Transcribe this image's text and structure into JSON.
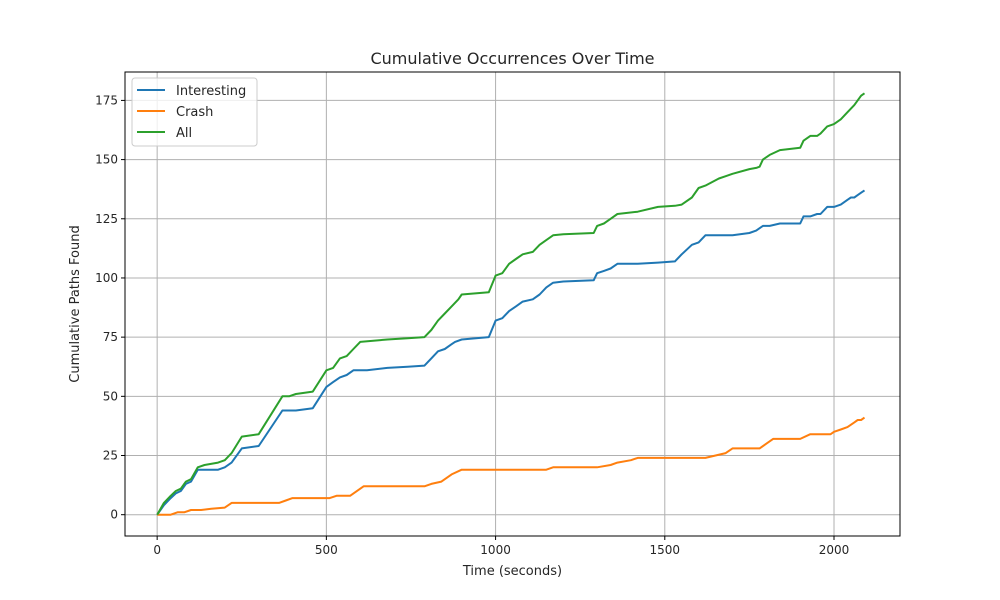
{
  "chart_data": {
    "type": "line",
    "title": "Cumulative Occurrences Over Time",
    "xlabel": "Time (seconds)",
    "ylabel": "Cumulative Paths Found",
    "xlim": [
      -95,
      2195
    ],
    "ylim": [
      -9,
      187
    ],
    "xticks": [
      0,
      500,
      1000,
      1500,
      2000
    ],
    "yticks": [
      0,
      25,
      50,
      75,
      100,
      125,
      150,
      175
    ],
    "grid": true,
    "legend_position": "top-left",
    "series": [
      {
        "name": "Interesting",
        "color": "#1f77b4",
        "x": [
          0,
          20,
          40,
          55,
          70,
          85,
          100,
          120,
          140,
          180,
          200,
          220,
          250,
          300,
          370,
          390,
          410,
          460,
          500,
          520,
          540,
          560,
          580,
          620,
          680,
          740,
          790,
          810,
          830,
          850,
          870,
          880,
          900,
          980,
          1000,
          1020,
          1040,
          1060,
          1080,
          1110,
          1130,
          1150,
          1170,
          1200,
          1290,
          1300,
          1320,
          1340,
          1360,
          1420,
          1480,
          1530,
          1550,
          1580,
          1600,
          1620,
          1660,
          1700,
          1750,
          1770,
          1780,
          1790,
          1810,
          1840,
          1900,
          1910,
          1930,
          1950,
          1960,
          1980,
          2000,
          2020,
          2040,
          2050,
          2060,
          2070,
          2080,
          2090
        ],
        "values": [
          0,
          4,
          7,
          9,
          10,
          13,
          14,
          19,
          19,
          19,
          20,
          22,
          28,
          29,
          44,
          44,
          44,
          45,
          54,
          56,
          58,
          59,
          61,
          61,
          62,
          62.5,
          63,
          66,
          69,
          70,
          72,
          73,
          74,
          75,
          82,
          83,
          86,
          88,
          90,
          91,
          93,
          96,
          98,
          98.5,
          99,
          102,
          103,
          104,
          106,
          106,
          106.5,
          107,
          110,
          114,
          115,
          118,
          118,
          118,
          119,
          120,
          121,
          122,
          122,
          123,
          123,
          126,
          126,
          127,
          127,
          130,
          130,
          131,
          133,
          134,
          134,
          135,
          136,
          137
        ]
      },
      {
        "name": "Crash",
        "color": "#ff7f0e",
        "x": [
          0,
          20,
          40,
          60,
          80,
          100,
          130,
          160,
          200,
          220,
          250,
          300,
          360,
          380,
          400,
          450,
          510,
          530,
          570,
          610,
          650,
          700,
          750,
          790,
          810,
          840,
          870,
          900,
          1000,
          1100,
          1150,
          1170,
          1300,
          1340,
          1360,
          1400,
          1420,
          1500,
          1560,
          1620,
          1680,
          1700,
          1780,
          1800,
          1820,
          1900,
          1930,
          1950,
          1990,
          2000,
          2020,
          2040,
          2060,
          2070,
          2080,
          2090
        ],
        "values": [
          0,
          0,
          0,
          1,
          1,
          2,
          2,
          2.5,
          3,
          5,
          5,
          5,
          5,
          6,
          7,
          7,
          7,
          8,
          8,
          12,
          12,
          12,
          12,
          12,
          13,
          14,
          17,
          19,
          19,
          19,
          19,
          20,
          20,
          21,
          22,
          23,
          24,
          24,
          24,
          24,
          26,
          28,
          28,
          30,
          32,
          32,
          34,
          34,
          34,
          35,
          36,
          37,
          39,
          40,
          40,
          41
        ]
      },
      {
        "name": "All",
        "color": "#2ca02c",
        "x": [
          0,
          20,
          40,
          55,
          70,
          85,
          100,
          120,
          140,
          180,
          200,
          220,
          250,
          300,
          370,
          390,
          410,
          460,
          500,
          520,
          540,
          560,
          580,
          600,
          680,
          740,
          790,
          810,
          830,
          850,
          870,
          890,
          900,
          980,
          1000,
          1020,
          1040,
          1060,
          1080,
          1110,
          1130,
          1150,
          1170,
          1200,
          1290,
          1300,
          1320,
          1340,
          1360,
          1420,
          1480,
          1530,
          1550,
          1580,
          1600,
          1620,
          1660,
          1680,
          1700,
          1750,
          1770,
          1780,
          1790,
          1810,
          1840,
          1900,
          1910,
          1930,
          1950,
          1960,
          1980,
          2000,
          2020,
          2040,
          2060,
          2080,
          2090
        ],
        "values": [
          0,
          5,
          8,
          10,
          11,
          14,
          15,
          20,
          21,
          22,
          23,
          26,
          33,
          34,
          50,
          50,
          51,
          52,
          61,
          62,
          66,
          67,
          70,
          73,
          74,
          74.5,
          75,
          78,
          82,
          85,
          88,
          91,
          93,
          94,
          101,
          102,
          106,
          108,
          110,
          111,
          114,
          116,
          118,
          118.5,
          119,
          122,
          123,
          125,
          127,
          128,
          130,
          130.5,
          131,
          134,
          138,
          139,
          142,
          143,
          144,
          146,
          146.5,
          147,
          150,
          152,
          154,
          155,
          158,
          160,
          160,
          161,
          164,
          165,
          167,
          170,
          173,
          177,
          178
        ]
      }
    ]
  }
}
